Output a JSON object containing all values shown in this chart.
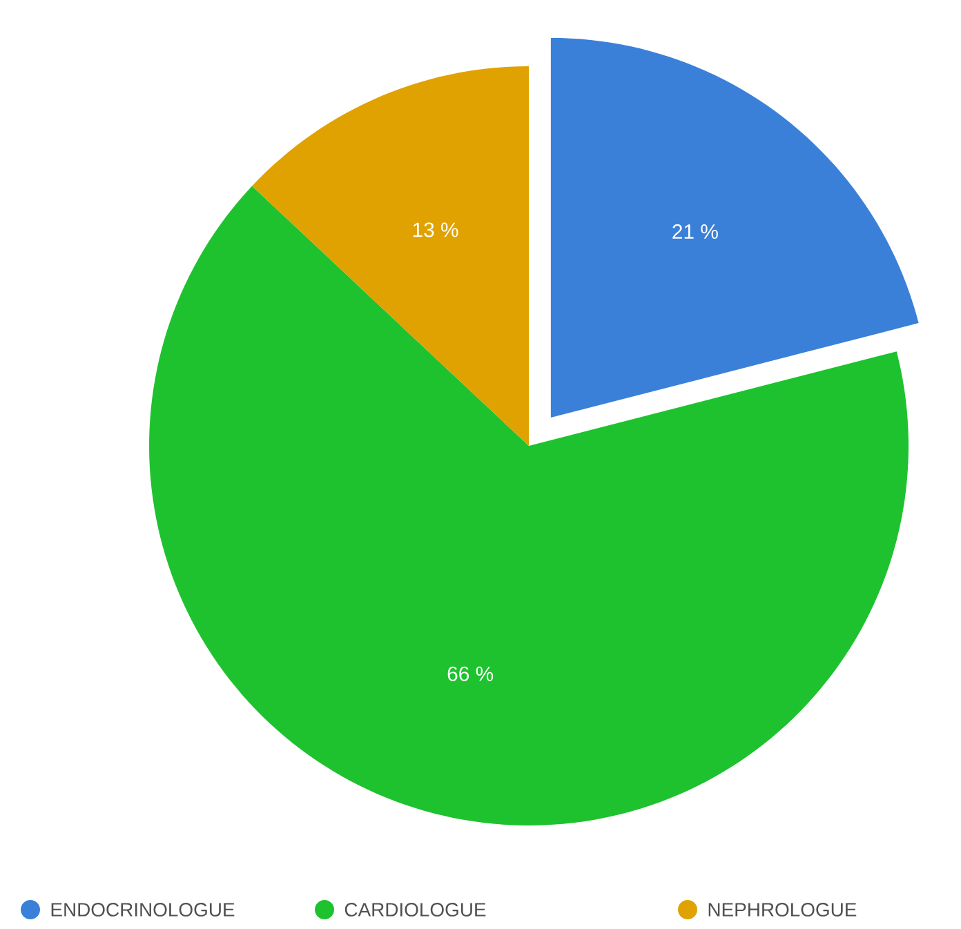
{
  "chart_data": {
    "type": "pie",
    "categories": [
      "ENDOCRINOLOGUE",
      "CARDIOLOGUE",
      "NEPHROLOGUE"
    ],
    "values": [
      21,
      66,
      13
    ],
    "colors": [
      "#3a80d8",
      "#1ec22e",
      "#e0a200"
    ],
    "value_labels": [
      "21 %",
      "66 %",
      "13 %"
    ],
    "legend": "bottom"
  }
}
